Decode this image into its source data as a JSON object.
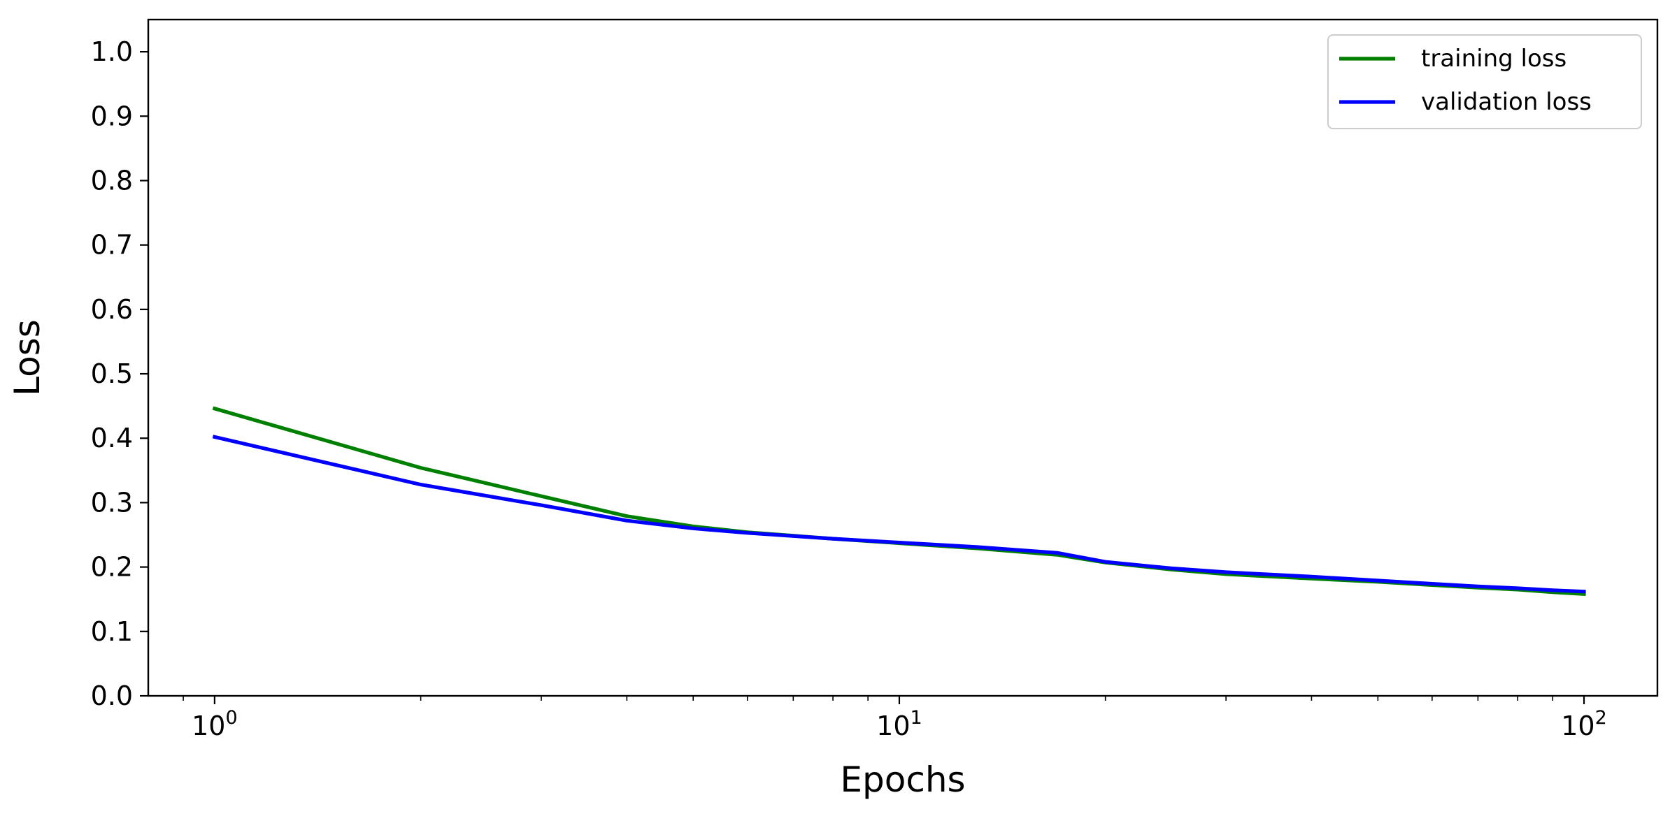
{
  "chart_data": {
    "type": "line",
    "xscale": "log",
    "xlabel": "Epochs",
    "ylabel": "Loss",
    "xlim": [
      0.8,
      128
    ],
    "ylim": [
      0.0,
      1.05
    ],
    "xticks": [
      {
        "value": 1,
        "base": "10",
        "exp": "0"
      },
      {
        "value": 10,
        "base": "10",
        "exp": "1"
      },
      {
        "value": 100,
        "base": "10",
        "exp": "2"
      }
    ],
    "yticks": [
      "0.0",
      "0.1",
      "0.2",
      "0.3",
      "0.4",
      "0.5",
      "0.6",
      "0.7",
      "0.8",
      "0.9",
      "1.0"
    ],
    "grid": false,
    "legend": "top-right",
    "series": [
      {
        "name": "training loss",
        "color": "#008000",
        "x": [
          1,
          2,
          3,
          4,
          5,
          6,
          8,
          10,
          13,
          17,
          20,
          25,
          30,
          40,
          50,
          60,
          70,
          80,
          90,
          100
        ],
        "y": [
          0.446,
          0.354,
          0.31,
          0.279,
          0.263,
          0.254,
          0.244,
          0.237,
          0.229,
          0.219,
          0.207,
          0.196,
          0.189,
          0.182,
          0.177,
          0.172,
          0.168,
          0.165,
          0.161,
          0.158
        ]
      },
      {
        "name": "validation loss",
        "color": "#0000ff",
        "x": [
          1,
          2,
          3,
          4,
          5,
          6,
          8,
          10,
          13,
          17,
          20,
          25,
          30,
          40,
          50,
          60,
          70,
          80,
          90,
          100
        ],
        "y": [
          0.402,
          0.328,
          0.296,
          0.272,
          0.26,
          0.253,
          0.244,
          0.238,
          0.231,
          0.222,
          0.208,
          0.198,
          0.192,
          0.185,
          0.179,
          0.174,
          0.17,
          0.167,
          0.164,
          0.162
        ]
      }
    ]
  }
}
